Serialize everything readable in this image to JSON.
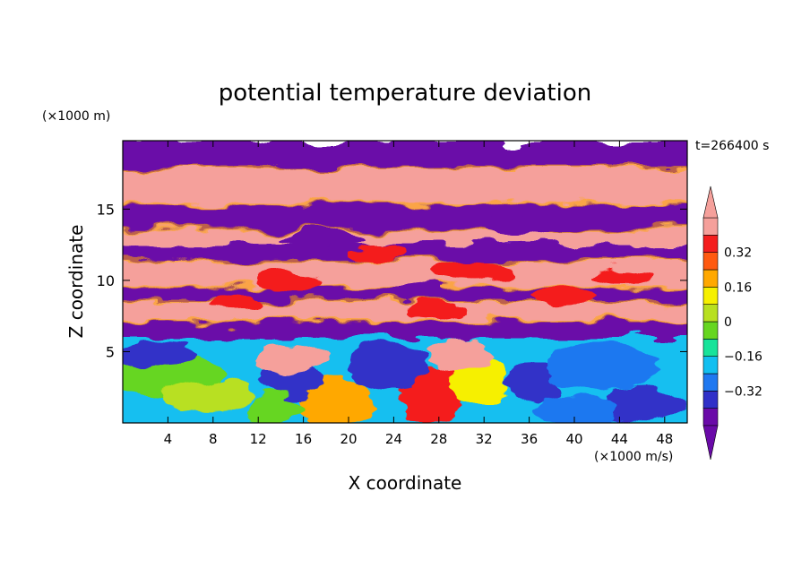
{
  "chart_data": {
    "type": "heatmap",
    "title": "potential temperature deviation",
    "xlabel": "X coordinate",
    "ylabel": "Z coordinate",
    "x_unit": "(×1000 m/s)",
    "y_unit": "(×1000 m)",
    "time_label": "t=266400 s",
    "xlim": [
      0,
      50
    ],
    "ylim": [
      0,
      19.8
    ],
    "x_ticks": [
      "4",
      "8",
      "12",
      "16",
      "20",
      "24",
      "28",
      "32",
      "36",
      "40",
      "44",
      "48"
    ],
    "y_ticks": [
      "5",
      "10",
      "15"
    ],
    "colorbar": {
      "labels": [
        "0.32",
        "0.16",
        "0",
        "−0.16",
        "−0.32"
      ],
      "label_values": [
        0.32,
        0.16,
        0,
        -0.16,
        -0.32
      ],
      "levels": [
        -0.48,
        -0.4,
        -0.32,
        -0.24,
        -0.16,
        -0.08,
        0,
        0.08,
        0.16,
        0.24,
        0.32,
        0.4,
        0.48
      ],
      "colors": [
        "#6a0aa8",
        "#3030c8",
        "#1f78f0",
        "#12bff0",
        "#18e39a",
        "#66d620",
        "#b8e020",
        "#f6f000",
        "#ffa800",
        "#ff5a10",
        "#f41e1e",
        "#f5a09b"
      ],
      "under_color": "#6a0aa8",
      "over_color": "#f5a09b"
    }
  }
}
